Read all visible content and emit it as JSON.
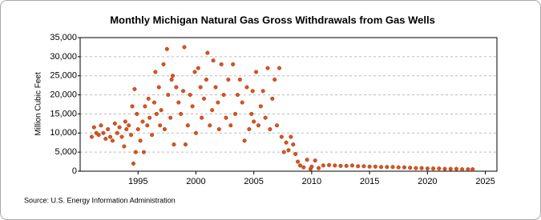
{
  "chart_data": {
    "type": "scatter",
    "title": "Monthly Michigan Natural Gas Gross Withdrawals from Gas Wells",
    "y_label": "Million Cubic Feet",
    "source": "Source: U.S. Energy Information Administration",
    "color": "#d9531e",
    "grid": true,
    "xlim": [
      1990,
      2026
    ],
    "xticks": [
      1995,
      2000,
      2005,
      2010,
      2015,
      2020,
      2025
    ],
    "ylim": [
      0,
      35000
    ],
    "yticks": [
      0,
      {
        "value": 5000,
        "label": "5,000"
      },
      {
        "value": 10000,
        "label": "10,000"
      },
      {
        "value": 15000,
        "label": "15,000"
      },
      {
        "value": 20000,
        "label": "20,000"
      },
      {
        "value": 25000,
        "label": "25,000"
      },
      {
        "value": 30000,
        "label": "30,000"
      },
      {
        "value": 35000,
        "label": "35,000"
      }
    ],
    "x": [
      1991.0,
      1991.2,
      1991.4,
      1991.6,
      1991.8,
      1992.0,
      1992.2,
      1992.4,
      1992.6,
      1992.8,
      1993.0,
      1993.2,
      1993.4,
      1993.6,
      1993.8,
      1993.9,
      1994.0,
      1994.2,
      1994.4,
      1994.5,
      1994.6,
      1994.7,
      1994.8,
      1994.9,
      1995.0,
      1995.2,
      1995.4,
      1995.5,
      1995.6,
      1995.8,
      1995.9,
      1996.0,
      1996.2,
      1996.4,
      1996.5,
      1996.6,
      1996.8,
      1996.9,
      1997.0,
      1997.2,
      1997.3,
      1997.5,
      1997.6,
      1997.8,
      1997.9,
      1998.0,
      1998.1,
      1998.3,
      1998.5,
      1998.7,
      1998.9,
      1999.0,
      1999.1,
      1999.3,
      1999.5,
      1999.7,
      1999.9,
      2000.0,
      2000.2,
      2000.4,
      2000.5,
      2000.7,
      2000.9,
      2001.0,
      2001.2,
      2001.4,
      2001.5,
      2001.7,
      2001.9,
      2002.0,
      2002.2,
      2002.4,
      2002.6,
      2002.8,
      2003.0,
      2003.2,
      2003.4,
      2003.6,
      2003.8,
      2004.0,
      2004.2,
      2004.4,
      2004.6,
      2004.8,
      2004.9,
      2005.0,
      2005.2,
      2005.4,
      2005.6,
      2005.8,
      2006.0,
      2006.2,
      2006.4,
      2006.6,
      2006.8,
      2007.0,
      2007.2,
      2007.4,
      2007.6,
      2007.8,
      2008.0,
      2008.2,
      2008.4,
      2008.6,
      2008.8,
      2009.0,
      2009.3,
      2009.6,
      2009.9,
      2010.0,
      2010.3,
      2010.6,
      2011.0,
      2011.5,
      2012.0,
      2012.5,
      2013.0,
      2013.5,
      2014.0,
      2014.5,
      2015.0,
      2015.5,
      2016.0,
      2016.5,
      2017.0,
      2017.5,
      2018.0,
      2018.5,
      2019.0,
      2019.5,
      2020.0,
      2020.5,
      2021.0,
      2021.5,
      2022.0,
      2022.5,
      2023.0,
      2023.5,
      2023.9
    ],
    "y": [
      9000,
      11500,
      10000,
      9500,
      12000,
      10000,
      8500,
      11000,
      9000,
      8000,
      12500,
      10000,
      11500,
      9000,
      6500,
      13000,
      11000,
      12000,
      9500,
      17000,
      2000,
      21500,
      5000,
      15000,
      11000,
      8000,
      13000,
      5000,
      17000,
      12000,
      19000,
      14000,
      9500,
      18000,
      26000,
      15000,
      22000,
      12000,
      16000,
      28000,
      11000,
      32000,
      20000,
      14000,
      24000,
      25000,
      7000,
      22000,
      18000,
      15000,
      21000,
      32500,
      7000,
      12000,
      20000,
      17000,
      26000,
      10000,
      27000,
      22000,
      14000,
      19000,
      24000,
      31000,
      12000,
      16000,
      29000,
      22000,
      18000,
      11000,
      28000,
      20000,
      14000,
      24000,
      12000,
      28000,
      15000,
      20000,
      24000,
      18000,
      8000,
      22000,
      11000,
      15000,
      21000,
      13000,
      26000,
      12000,
      17000,
      21000,
      14000,
      27000,
      11000,
      19000,
      24000,
      12000,
      27000,
      9000,
      5000,
      7500,
      5500,
      9000,
      7000,
      4500,
      2500,
      1500,
      1000,
      3000,
      600,
      1200,
      2800,
      800,
      1500,
      1600,
      1500,
      1400,
      1400,
      1500,
      1300,
      1300,
      1200,
      1200,
      1100,
      1100,
      1100,
      1000,
      1000,
      900,
      800,
      800,
      700,
      700,
      700,
      600,
      600,
      600,
      500,
      500,
      500
    ]
  }
}
